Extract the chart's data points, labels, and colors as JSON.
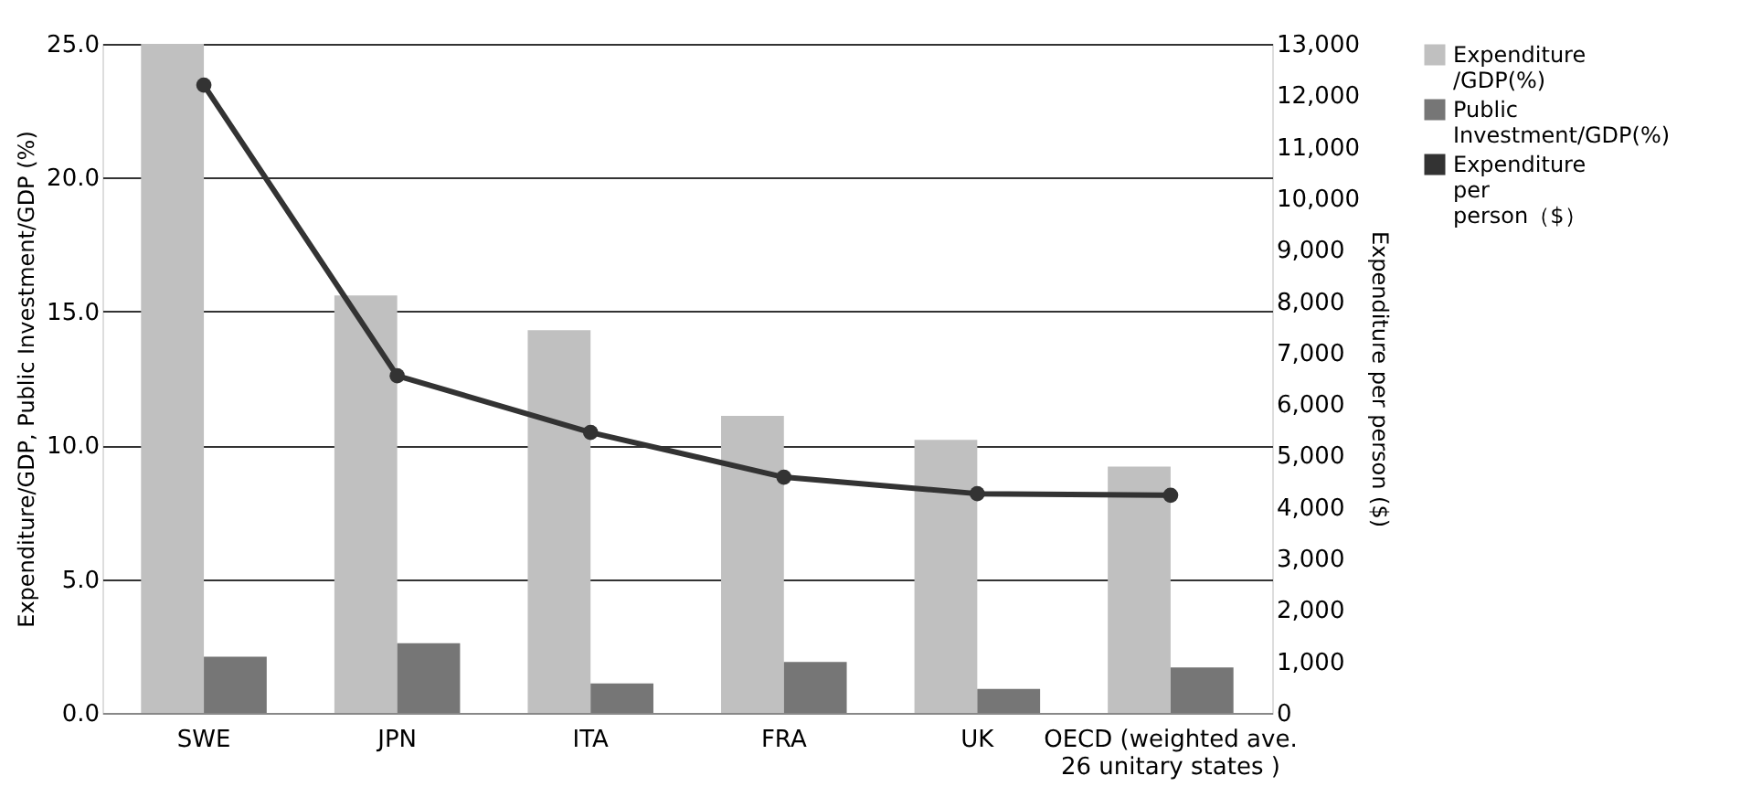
{
  "chart_data": {
    "type": "bar",
    "categories": [
      "SWE",
      "JPN",
      "ITA",
      "FRA",
      "UK",
      "OECD  (weighted ave.\n26 unitary states )"
    ],
    "series": [
      {
        "name": "Expenditure /GDP(%)",
        "color": "#c0c0c0",
        "values": [
          25.0,
          15.6,
          14.3,
          11.1,
          10.2,
          9.2
        ]
      },
      {
        "name": "Public Investment/GDP(%)",
        "color": "#767676",
        "values": [
          2.1,
          2.6,
          1.1,
          1.9,
          0.9,
          1.7
        ]
      },
      {
        "name": "Expenditure per person（$）",
        "color": "#333333",
        "type": "line",
        "axis": "y2",
        "marker": "circle",
        "line_style": "solid",
        "values": [
          12200,
          6550,
          5450,
          4580,
          4260,
          4230
        ]
      }
    ],
    "ylabel": "Expenditure/GDP, Public Investment/GDP (%)",
    "y2label": "Expenditure per person ($)",
    "ylim": [
      0,
      25
    ],
    "yticks": [
      {
        "value": 0,
        "label": "0.0"
      },
      {
        "value": 5,
        "label": "5.0"
      },
      {
        "value": 10,
        "label": "10.0"
      },
      {
        "value": 15,
        "label": "15.0"
      },
      {
        "value": 20,
        "label": "20.0"
      },
      {
        "value": 25,
        "label": "25.0"
      }
    ],
    "y2lim": [
      0,
      13000
    ],
    "y2ticks": [
      0,
      {
        "value": 1000,
        "label": "1,000"
      },
      {
        "value": 2000,
        "label": "2,000"
      },
      {
        "value": 3000,
        "label": "3,000"
      },
      {
        "value": 4000,
        "label": "4,000"
      },
      {
        "value": 5000,
        "label": "5,000"
      },
      {
        "value": 6000,
        "label": "6,000"
      },
      {
        "value": 7000,
        "label": "7,000"
      },
      {
        "value": 8000,
        "label": "8,000"
      },
      {
        "value": 9000,
        "label": "9,000"
      },
      {
        "value": 10000,
        "label": "10,000"
      },
      {
        "value": 11000,
        "label": "11,000"
      },
      {
        "value": 12000,
        "label": "12,000"
      },
      {
        "value": 13000,
        "label": "13,000"
      }
    ],
    "grid": "y",
    "legend": "right"
  }
}
